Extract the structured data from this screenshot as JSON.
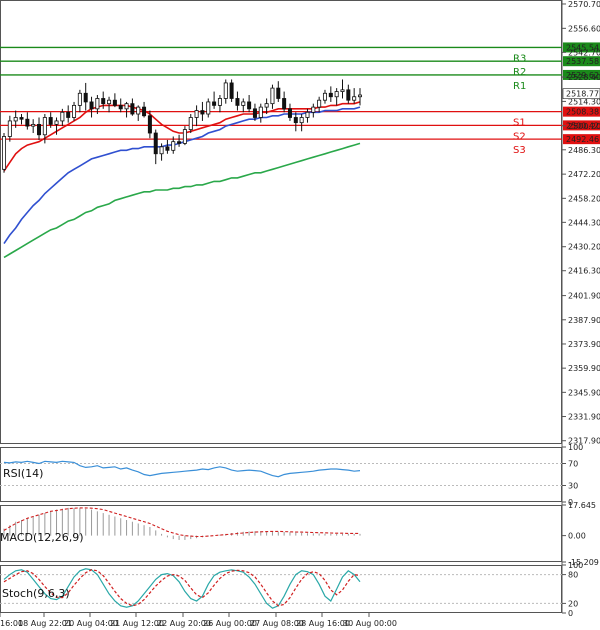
{
  "chart_data": [
    {
      "type": "candlestick",
      "panel": "price",
      "y_axis": {
        "ticks": [
          2570.7,
          2556.6,
          2542.7,
          2528.4,
          2514.3,
          2500.2,
          2486.3,
          2472.2,
          2458.2,
          2444.3,
          2430.2,
          2416.3,
          2401.9,
          2387.9,
          2373.9,
          2359.9,
          2345.9,
          2331.9,
          2317.9
        ],
        "ylim": [
          2316.0,
          2573.0
        ]
      },
      "x_axis": {
        "ticks": [
          "16:00",
          "18 Aug 22:01",
          "20 Aug 04:00",
          "21 Aug 12:00",
          "22 Aug 20:00",
          "26 Aug 00:00",
          "27 Aug 08:00",
          "28 Aug 16:00",
          "30 Aug 00:00"
        ]
      },
      "levels": [
        {
          "name": "R3",
          "value": 2545.54,
          "color": "#1a8a1a"
        },
        {
          "name": "R2",
          "value": 2537.58,
          "color": "#1a8a1a"
        },
        {
          "name": "R1",
          "value": 2529.62,
          "color": "#1a8a1a"
        },
        {
          "name": "S1",
          "value": 2508.38,
          "color": "#e01010"
        },
        {
          "name": "S2",
          "value": 2500.42,
          "color": "#e01010"
        },
        {
          "name": "S3",
          "value": 2492.46,
          "color": "#e01010"
        }
      ],
      "current_price": {
        "value": 2518.77,
        "color": "#222222"
      },
      "candles": [
        [
          2475,
          2496,
          2473,
          2494
        ],
        [
          2494,
          2506,
          2491,
          2503
        ],
        [
          2503,
          2509,
          2499,
          2505
        ],
        [
          2505,
          2507,
          2501,
          2504
        ],
        [
          2504,
          2508,
          2498,
          2500
        ],
        [
          2500,
          2504,
          2496,
          2501
        ],
        [
          2501,
          2505,
          2492,
          2495
        ],
        [
          2495,
          2507,
          2490,
          2505
        ],
        [
          2505,
          2508,
          2499,
          2501
        ],
        [
          2501,
          2505,
          2495,
          2503
        ],
        [
          2503,
          2510,
          2500,
          2508
        ],
        [
          2508,
          2512,
          2502,
          2505
        ],
        [
          2505,
          2514,
          2503,
          2512
        ],
        [
          2512,
          2521,
          2508,
          2519
        ],
        [
          2519,
          2525,
          2509,
          2514
        ],
        [
          2514,
          2517,
          2505,
          2510
        ],
        [
          2510,
          2518,
          2507,
          2516
        ],
        [
          2516,
          2520,
          2510,
          2513
        ],
        [
          2513,
          2517,
          2508,
          2515
        ],
        [
          2515,
          2519,
          2511,
          2512
        ],
        [
          2512,
          2516,
          2508,
          2510
        ],
        [
          2510,
          2514,
          2505,
          2513
        ],
        [
          2513,
          2516,
          2506,
          2507
        ],
        [
          2507,
          2512,
          2503,
          2511
        ],
        [
          2511,
          2514,
          2505,
          2506
        ],
        [
          2506,
          2509,
          2493,
          2496
        ],
        [
          2496,
          2498,
          2478,
          2484
        ],
        [
          2484,
          2490,
          2480,
          2488
        ],
        [
          2488,
          2492,
          2484,
          2486
        ],
        [
          2486,
          2494,
          2484,
          2491
        ],
        [
          2491,
          2495,
          2488,
          2490
        ],
        [
          2490,
          2500,
          2489,
          2498
        ],
        [
          2498,
          2507,
          2496,
          2505
        ],
        [
          2505,
          2512,
          2500,
          2509
        ],
        [
          2509,
          2514,
          2503,
          2507
        ],
        [
          2507,
          2516,
          2505,
          2514
        ],
        [
          2514,
          2520,
          2510,
          2512
        ],
        [
          2512,
          2518,
          2508,
          2516
        ],
        [
          2516,
          2527,
          2513,
          2525
        ],
        [
          2525,
          2527,
          2514,
          2516
        ],
        [
          2516,
          2520,
          2509,
          2512
        ],
        [
          2512,
          2516,
          2508,
          2514
        ],
        [
          2514,
          2518,
          2508,
          2510
        ],
        [
          2510,
          2513,
          2503,
          2505
        ],
        [
          2505,
          2513,
          2502,
          2511
        ],
        [
          2511,
          2516,
          2507,
          2513
        ],
        [
          2513,
          2524,
          2510,
          2522
        ],
        [
          2522,
          2526,
          2514,
          2516
        ],
        [
          2516,
          2520,
          2508,
          2510
        ],
        [
          2510,
          2513,
          2503,
          2505
        ],
        [
          2505,
          2508,
          2497,
          2502
        ],
        [
          2502,
          2507,
          2497,
          2505
        ],
        [
          2505,
          2510,
          2502,
          2508
        ],
        [
          2508,
          2513,
          2505,
          2511
        ],
        [
          2511,
          2517,
          2508,
          2515
        ],
        [
          2515,
          2521,
          2513,
          2519
        ],
        [
          2519,
          2523,
          2514,
          2517
        ],
        [
          2517,
          2522,
          2512,
          2520
        ],
        [
          2520,
          2527,
          2516,
          2521
        ],
        [
          2521,
          2524,
          2513,
          2515
        ],
        [
          2515,
          2522,
          2513,
          2517
        ],
        [
          2517,
          2522,
          2512,
          2518
        ]
      ],
      "series": [
        {
          "color": "#e01010",
          "values": [
            2474,
            2479,
            2484,
            2487,
            2489,
            2490,
            2491,
            2493,
            2495,
            2497,
            2499,
            2501,
            2503,
            2505,
            2508,
            2510,
            2511,
            2512,
            2512,
            2512,
            2512,
            2512,
            2511,
            2510,
            2509,
            2507,
            2504,
            2501,
            2499,
            2497,
            2496,
            2496,
            2497,
            2498,
            2499,
            2500,
            2501,
            2502,
            2504,
            2505,
            2506,
            2507,
            2507,
            2507,
            2508,
            2508,
            2509,
            2510,
            2510,
            2510,
            2510,
            2510,
            2510,
            2510,
            2511,
            2511,
            2512,
            2512,
            2513,
            2513,
            2513,
            2514
          ]
        },
        {
          "color": "#3050d0",
          "values": [
            2432,
            2437,
            2441,
            2446,
            2450,
            2454,
            2457,
            2461,
            2464,
            2467,
            2470,
            2473,
            2475,
            2477,
            2479,
            2481,
            2482,
            2483,
            2484,
            2485,
            2486,
            2486,
            2487,
            2487,
            2488,
            2488,
            2488,
            2488,
            2489,
            2489,
            2490,
            2491,
            2492,
            2493,
            2494,
            2496,
            2497,
            2498,
            2500,
            2501,
            2502,
            2503,
            2504,
            2504,
            2505,
            2505,
            2506,
            2506,
            2507,
            2507,
            2507,
            2507,
            2508,
            2508,
            2508,
            2509,
            2509,
            2509,
            2510,
            2510,
            2510,
            2511
          ]
        },
        {
          "color": "#2aa84a",
          "values": [
            2424,
            2426,
            2428,
            2430,
            2432,
            2434,
            2436,
            2438,
            2440,
            2441,
            2443,
            2445,
            2446,
            2448,
            2450,
            2451,
            2453,
            2454,
            2455,
            2457,
            2458,
            2459,
            2460,
            2461,
            2462,
            2462,
            2463,
            2463,
            2463,
            2464,
            2464,
            2465,
            2465,
            2466,
            2466,
            2467,
            2468,
            2468,
            2469,
            2470,
            2470,
            2471,
            2472,
            2473,
            2473,
            2474,
            2475,
            2476,
            2477,
            2478,
            2479,
            2480,
            2481,
            2482,
            2483,
            2484,
            2485,
            2486,
            2487,
            2488,
            2489,
            2490
          ]
        }
      ]
    },
    {
      "type": "line",
      "panel": "rsi",
      "label": "RSI(14)",
      "y_axis": {
        "ticks": [
          100,
          70,
          30,
          0
        ],
        "ylim": [
          0,
          100
        ]
      },
      "series": [
        {
          "color": "#3a8fd8",
          "values": [
            72,
            71,
            73,
            72,
            74,
            72,
            70,
            74,
            73,
            72,
            74,
            73,
            72,
            66,
            63,
            64,
            66,
            62,
            63,
            64,
            60,
            62,
            58,
            55,
            50,
            48,
            50,
            52,
            53,
            54,
            55,
            56,
            57,
            58,
            60,
            59,
            62,
            64,
            62,
            58,
            56,
            57,
            58,
            57,
            56,
            52,
            48,
            46,
            50,
            52,
            53,
            54,
            55,
            56,
            58,
            59,
            60,
            60,
            59,
            58,
            56,
            57
          ]
        }
      ]
    },
    {
      "type": "bar",
      "panel": "macd",
      "label": "MACD(12,26,9)",
      "y_axis": {
        "ticks": [
          17.645,
          0.0,
          -15.209
        ],
        "ylim": [
          -15.209,
          17.645
        ]
      },
      "histogram": [
        4,
        6,
        8,
        9,
        10,
        11,
        12,
        13,
        14,
        15,
        15.5,
        16,
        16,
        16,
        15.5,
        15,
        14,
        13,
        12,
        11,
        10,
        9,
        8,
        7,
        6,
        5,
        3,
        1,
        -1,
        -2,
        -2.5,
        -2.5,
        -2,
        -1.5,
        -1,
        -0.5,
        0,
        0.5,
        1,
        1.5,
        2,
        2.2,
        2.4,
        2.5,
        2.5,
        2.4,
        2.3,
        2.2,
        2.1,
        2.0,
        1.8,
        1.6,
        1.4,
        1.3,
        1.2,
        1.1,
        1.0,
        1.0,
        1.0,
        1.0,
        1.0,
        1.0
      ],
      "series": [
        {
          "color": "#d02020",
          "dashed": true,
          "values": [
            3,
            5,
            7,
            8.5,
            10,
            11,
            12,
            13,
            14,
            14.5,
            15,
            15.5,
            15.8,
            16,
            16,
            15.8,
            15.5,
            15,
            14,
            13,
            12,
            11,
            10,
            9,
            8,
            7,
            5.5,
            4,
            2.5,
            1.5,
            0.5,
            0,
            -0.3,
            -0.5,
            -0.5,
            -0.3,
            0,
            0.3,
            0.6,
            0.9,
            1.2,
            1.5,
            1.8,
            2.0,
            2.2,
            2.3,
            2.4,
            2.4,
            2.3,
            2.2,
            2.1,
            2.0,
            1.9,
            1.8,
            1.7,
            1.6,
            1.5,
            1.4,
            1.4,
            1.3,
            1.3,
            1.3
          ]
        }
      ]
    },
    {
      "type": "line",
      "panel": "stoch",
      "label": "Stoch(9,6,3)",
      "y_axis": {
        "ticks": [
          100,
          80,
          20,
          0
        ],
        "ylim": [
          0,
          100
        ]
      },
      "series": [
        {
          "color": "#2aa8a8",
          "values": [
            70,
            80,
            88,
            90,
            85,
            70,
            55,
            40,
            30,
            28,
            35,
            55,
            75,
            88,
            92,
            90,
            80,
            60,
            40,
            25,
            15,
            12,
            15,
            25,
            40,
            55,
            70,
            80,
            82,
            78,
            65,
            45,
            30,
            25,
            35,
            60,
            78,
            85,
            88,
            90,
            88,
            85,
            75,
            60,
            40,
            20,
            10,
            15,
            35,
            60,
            80,
            88,
            86,
            80,
            60,
            35,
            25,
            50,
            75,
            88,
            80,
            65
          ]
        },
        {
          "color": "#d02020",
          "dashed": true,
          "values": [
            65,
            72,
            80,
            86,
            88,
            82,
            70,
            55,
            42,
            33,
            32,
            42,
            58,
            72,
            84,
            90,
            88,
            78,
            62,
            45,
            30,
            20,
            15,
            18,
            28,
            42,
            56,
            68,
            77,
            80,
            77,
            68,
            52,
            38,
            32,
            42,
            58,
            72,
            82,
            87,
            89,
            88,
            84,
            75,
            60,
            42,
            25,
            15,
            18,
            32,
            52,
            70,
            82,
            86,
            82,
            68,
            48,
            38,
            48,
            66,
            80,
            78
          ]
        }
      ]
    }
  ]
}
